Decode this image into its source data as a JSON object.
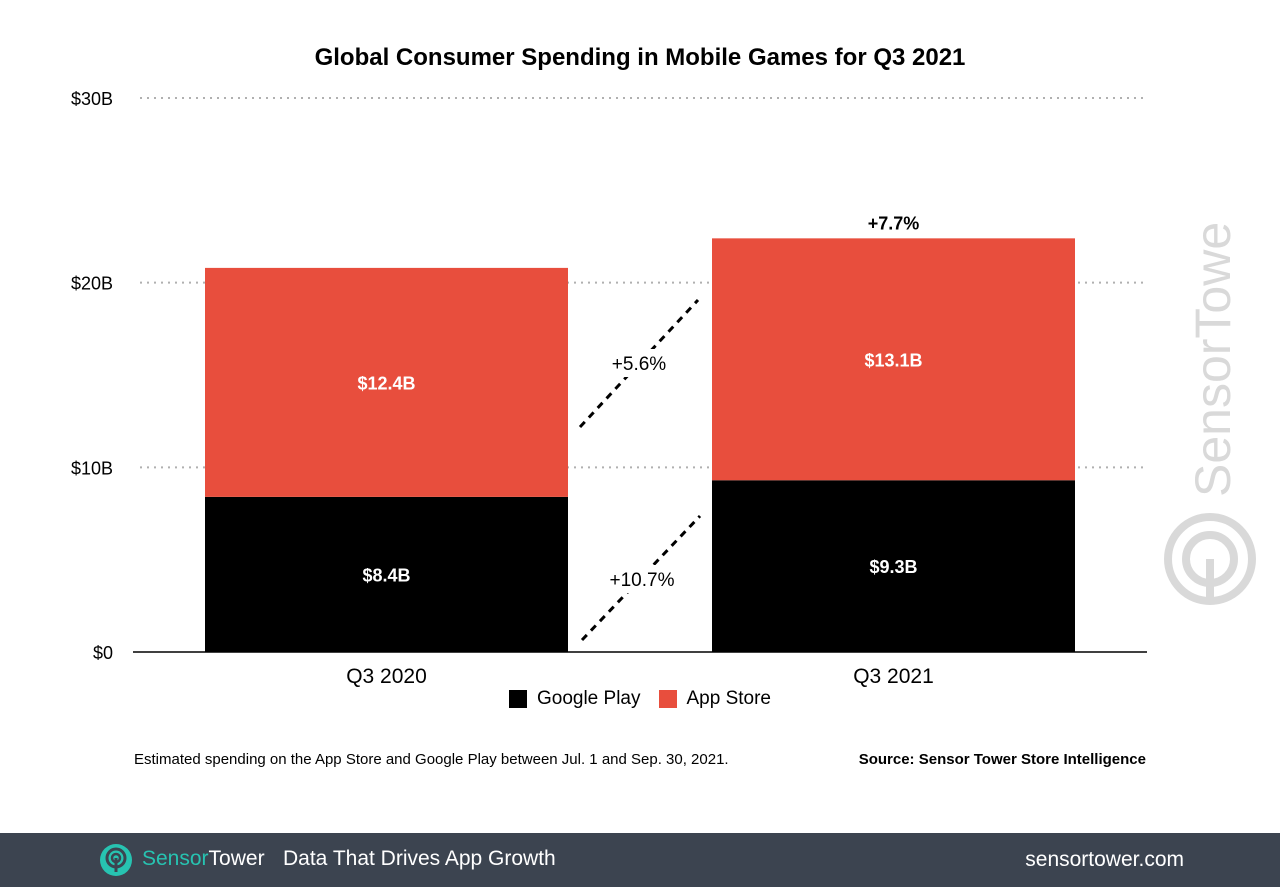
{
  "chart_data": {
    "type": "bar",
    "stacked": true,
    "title": "Global Consumer Spending in Mobile Games for Q3 2021",
    "categories": [
      "Q3 2020",
      "Q3 2021"
    ],
    "series": [
      {
        "name": "Google Play",
        "values": [
          8.4,
          9.3
        ],
        "labels": [
          "$8.4B",
          "$9.3B"
        ],
        "color": "#000000"
      },
      {
        "name": "App Store",
        "values": [
          12.4,
          13.1
        ],
        "labels": [
          "$12.4B",
          "$13.1B"
        ],
        "color": "#e84e3d"
      }
    ],
    "yticks": [
      {
        "value": 0,
        "label": "$0"
      },
      {
        "value": 10,
        "label": "$10B"
      },
      {
        "value": 20,
        "label": "$20B"
      },
      {
        "value": 30,
        "label": "$30B"
      }
    ],
    "ylim": [
      0,
      30
    ],
    "grid": true,
    "legend_position": "bottom",
    "annotations": {
      "total_growth": "+7.7%",
      "app_store_growth": "+5.6%",
      "google_play_growth": "+10.7%"
    }
  },
  "footnote": "Estimated spending on the App Store and Google Play between Jul. 1 and Sep. 30, 2021.",
  "source": "Source: Sensor Tower Store Intelligence",
  "watermark": {
    "text": "SensorTower",
    "icon": "sensor-tower-logo-icon",
    "color": "#d9d9d9"
  },
  "footer": {
    "brand_part1": "Sensor",
    "brand_part2": "Tower",
    "tagline": "Data That Drives App Growth",
    "url": "sensortower.com",
    "icon": "sensor-tower-logo-icon",
    "background": "#3c4450",
    "accent": "#27c3b1"
  }
}
